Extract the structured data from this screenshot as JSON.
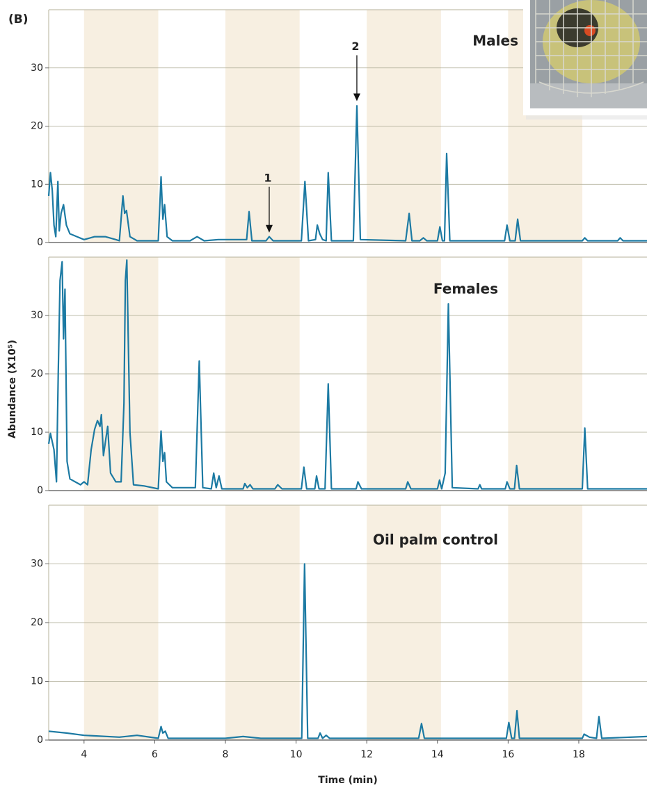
{
  "panel_label": "(B)",
  "y_label": "Abundance (X10⁵)",
  "x_label": "Time (min)",
  "chart_data": [
    {
      "type": "line",
      "title": "Males",
      "color": "#1c7aa3",
      "xlim": [
        3,
        19.93
      ],
      "ylim": [
        0,
        40
      ],
      "yticks": [
        0,
        10,
        20,
        30
      ],
      "grid": true,
      "bands": [
        [
          4,
          6.1
        ],
        [
          8,
          10.1
        ],
        [
          12,
          14.1
        ],
        [
          16,
          18.1
        ]
      ],
      "x": [
        3.0,
        3.05,
        3.1,
        3.15,
        3.2,
        3.26,
        3.3,
        3.35,
        3.42,
        3.5,
        3.6,
        3.8,
        4.0,
        4.3,
        4.6,
        4.9,
        5.0,
        5.1,
        5.15,
        5.2,
        5.3,
        5.5,
        6.1,
        6.18,
        6.23,
        6.28,
        6.35,
        6.5,
        7.0,
        7.2,
        7.4,
        7.8,
        8.0,
        8.6,
        8.67,
        8.75,
        9.15,
        9.24,
        9.35,
        10.15,
        10.25,
        10.35,
        10.55,
        10.6,
        10.67,
        10.75,
        10.85,
        10.91,
        11.0,
        11.62,
        11.72,
        11.82,
        13.1,
        13.2,
        13.28,
        13.5,
        13.6,
        13.7,
        14.0,
        14.07,
        14.14,
        14.2,
        14.26,
        14.35,
        15.9,
        15.97,
        16.05,
        16.2,
        16.27,
        16.35,
        18.1,
        18.17,
        18.25,
        19.1,
        19.17,
        19.25,
        19.93
      ],
      "values": [
        8,
        12,
        9,
        3,
        1,
        10.5,
        2,
        5,
        6.5,
        3,
        1.5,
        1,
        0.5,
        1,
        1,
        0.5,
        0.3,
        8,
        5,
        5.5,
        1,
        0.3,
        0.3,
        11.3,
        4,
        6.5,
        1,
        0.3,
        0.3,
        1,
        0.3,
        0.5,
        0.5,
        0.5,
        5.3,
        0.3,
        0.3,
        1,
        0.3,
        0.3,
        10.5,
        0.3,
        0.5,
        3,
        1.5,
        0.5,
        0.3,
        12,
        0.3,
        0.3,
        23.5,
        0.5,
        0.3,
        5,
        0.3,
        0.3,
        0.8,
        0.3,
        0.3,
        2.7,
        0.3,
        0.3,
        15.3,
        0.3,
        0.3,
        3,
        0.3,
        0.3,
        4,
        0.3,
        0.3,
        0.8,
        0.3,
        0.3,
        0.8,
        0.3,
        0.3
      ],
      "annotations": [
        {
          "text": "1",
          "x": 9.24,
          "y": 1.7
        },
        {
          "text": "2",
          "x": 11.72,
          "y": 24.3
        }
      ]
    },
    {
      "type": "line",
      "title": "Females",
      "color": "#1c7aa3",
      "xlim": [
        3,
        19.93
      ],
      "ylim": [
        0,
        40
      ],
      "yticks": [
        0,
        10,
        20,
        30
      ],
      "grid": true,
      "bands": [
        [
          4,
          6.1
        ],
        [
          8,
          10.1
        ],
        [
          12,
          14.1
        ],
        [
          16,
          18.1
        ]
      ],
      "x": [
        3.0,
        3.05,
        3.15,
        3.22,
        3.27,
        3.32,
        3.38,
        3.42,
        3.46,
        3.52,
        3.6,
        3.9,
        4.0,
        4.1,
        4.2,
        4.3,
        4.38,
        4.45,
        4.49,
        4.55,
        4.62,
        4.67,
        4.75,
        4.9,
        5.05,
        5.13,
        5.17,
        5.21,
        5.3,
        5.4,
        5.7,
        6.1,
        6.18,
        6.23,
        6.28,
        6.33,
        6.5,
        7.15,
        7.26,
        7.36,
        7.6,
        7.67,
        7.74,
        7.82,
        7.9,
        8.5,
        8.55,
        8.62,
        8.7,
        8.78,
        9.4,
        9.48,
        9.6,
        10.15,
        10.22,
        10.3,
        10.53,
        10.58,
        10.65,
        10.82,
        10.91,
        11.0,
        11.7,
        11.75,
        11.85,
        13.1,
        13.16,
        13.25,
        14.0,
        14.06,
        14.12,
        14.22,
        14.31,
        14.42,
        15.15,
        15.2,
        15.25,
        15.92,
        15.97,
        16.05,
        16.18,
        16.24,
        16.32,
        18.1,
        18.17,
        18.25,
        19.93
      ],
      "values": [
        8,
        9.8,
        7,
        1.5,
        20,
        36,
        39.2,
        26,
        34.5,
        5,
        2,
        1,
        1.5,
        1,
        7,
        10.5,
        12,
        11,
        13,
        6,
        9,
        11,
        3,
        1.5,
        1.5,
        15,
        36,
        39.5,
        10,
        1,
        0.8,
        0.3,
        10.2,
        5,
        6.5,
        1.5,
        0.5,
        0.5,
        22.2,
        0.5,
        0.3,
        3,
        0.5,
        2.5,
        0.3,
        0.3,
        1.2,
        0.5,
        1,
        0.3,
        0.3,
        1,
        0.3,
        0.3,
        4,
        0.3,
        0.3,
        2.5,
        0.3,
        0.3,
        18.3,
        0.3,
        0.3,
        1.5,
        0.3,
        0.3,
        1.5,
        0.3,
        0.3,
        1.8,
        0.3,
        3,
        32,
        0.5,
        0.3,
        1,
        0.3,
        0.3,
        1.5,
        0.3,
        0.3,
        4.3,
        0.3,
        0.3,
        10.7,
        0.3,
        0.3
      ]
    },
    {
      "type": "line",
      "title": "Oil palm control",
      "color": "#1c7aa3",
      "xlim": [
        3,
        19.93
      ],
      "ylim": [
        0,
        40
      ],
      "yticks": [
        0,
        10,
        20,
        30
      ],
      "xticks": [
        4,
        6,
        8,
        10,
        12,
        14,
        16,
        18
      ],
      "grid": true,
      "bands": [
        [
          4,
          6.1
        ],
        [
          8,
          10.1
        ],
        [
          12,
          14.1
        ],
        [
          16,
          18.1
        ]
      ],
      "x": [
        3.0,
        3.5,
        4.0,
        5.0,
        5.5,
        6.1,
        6.18,
        6.23,
        6.3,
        6.38,
        8.0,
        8.5,
        9.0,
        10.16,
        10.24,
        10.33,
        10.62,
        10.68,
        10.75,
        10.85,
        10.95,
        13.47,
        13.55,
        13.63,
        15.95,
        16.02,
        16.1,
        16.18,
        16.25,
        16.32,
        18.1,
        18.15,
        18.3,
        18.5,
        18.57,
        18.65,
        19.93
      ],
      "values": [
        1.5,
        1.2,
        0.8,
        0.5,
        0.8,
        0.3,
        2.3,
        1.2,
        1.5,
        0.3,
        0.3,
        0.6,
        0.3,
        0.3,
        30,
        0.3,
        0.3,
        1.2,
        0.3,
        0.8,
        0.3,
        0.3,
        2.8,
        0.3,
        0.3,
        3,
        0.3,
        0.3,
        5,
        0.3,
        0.3,
        1,
        0.5,
        0.3,
        4,
        0.3,
        0.6
      ]
    }
  ]
}
